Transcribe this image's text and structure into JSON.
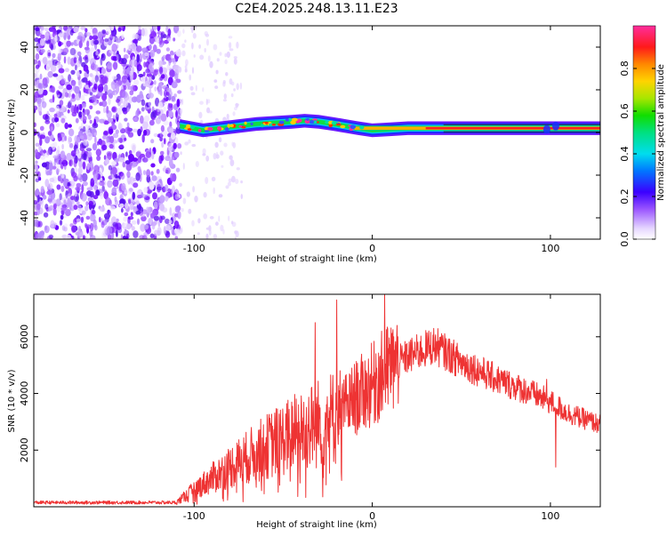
{
  "title": "C2E4.2025.248.13.11.E23",
  "chart_data": [
    {
      "type": "heatmap",
      "id": "spectrogram",
      "xlabel": "Height of straight line (km)",
      "ylabel": "Frequency (Hz)",
      "xlim": [
        -190,
        128
      ],
      "ylim": [
        -50,
        50
      ],
      "xticks": [
        -100,
        0,
        100
      ],
      "yticks": [
        -40,
        -20,
        0,
        20,
        40
      ],
      "noise_region_x": [
        -190,
        -108
      ],
      "signal_path": {
        "x": [
          -108,
          -95,
          -85,
          -75,
          -65,
          -55,
          -45,
          -38,
          -30,
          -22,
          -15,
          -8,
          0,
          10,
          20,
          35,
          60,
          90,
          100,
          105,
          128
        ],
        "freq_hz": [
          3,
          1,
          2,
          3,
          4,
          4.5,
          5,
          5.5,
          5,
          4,
          3,
          2,
          1,
          1.5,
          2,
          2,
          2,
          2,
          2,
          2,
          2
        ]
      },
      "colorbar": {
        "label": "Normalized spectral amplitude",
        "range": [
          0.0,
          1.0
        ],
        "ticks": [
          "0.0",
          "0.2",
          "0.4",
          "0.6",
          "0.8"
        ]
      }
    },
    {
      "type": "line",
      "id": "snr",
      "xlabel": "Height of straight line (km)",
      "ylabel": "SNR (10 * v/v)",
      "xlim": [
        -190,
        128
      ],
      "ylim": [
        0,
        7500
      ],
      "xticks": [
        -100,
        0,
        100
      ],
      "yticks": [
        2000,
        4000,
        6000
      ],
      "color": "#ee3333",
      "envelope": {
        "x": [
          -190,
          -110,
          -100,
          -80,
          -60,
          -40,
          -20,
          -10,
          0,
          10,
          20,
          35,
          50,
          70,
          90,
          100,
          110,
          128
        ],
        "y": [
          150,
          150,
          600,
          1400,
          2100,
          2700,
          3200,
          3800,
          4300,
          4900,
          5300,
          5700,
          5100,
          4500,
          4000,
          3700,
          3300,
          2900
        ]
      },
      "spikes": [
        {
          "x": -32,
          "y": 6500
        },
        {
          "x": -20,
          "y": 7300
        },
        {
          "x": -18,
          "y": 4800
        },
        {
          "x": 2,
          "y": 5400
        },
        {
          "x": 7,
          "y": 7500
        },
        {
          "x": 12,
          "y": 6000
        },
        {
          "x": 98,
          "y": 4500
        },
        {
          "x": 103,
          "y": 1400
        }
      ]
    }
  ]
}
